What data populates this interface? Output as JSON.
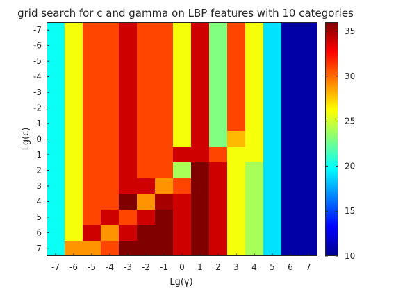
{
  "chart_data": {
    "type": "heatmap",
    "title": "grid search for c and gamma on LBP features with 10 categories",
    "xlabel": "Lg(γ)",
    "ylabel": "Lg(c)",
    "x_ticks": [
      "-7",
      "-6",
      "-5",
      "-4",
      "-3",
      "-2",
      "-1",
      "0",
      "1",
      "2",
      "3",
      "4",
      "5",
      "6",
      "7"
    ],
    "y_ticks": [
      "-7",
      "-6",
      "-5",
      "-4",
      "-3",
      "-2",
      "-1",
      "0",
      "1",
      "2",
      "3",
      "4",
      "5",
      "6",
      "7"
    ],
    "colorbar": {
      "min": 10,
      "max": 36,
      "ticks": [
        "10",
        "15",
        "20",
        "25",
        "30",
        "35"
      ],
      "colormap": "jet"
    },
    "values": [
      [
        20,
        26,
        31,
        31,
        34,
        31,
        31,
        26,
        34,
        23,
        31,
        26,
        19,
        11,
        11
      ],
      [
        20,
        26,
        31,
        31,
        34,
        31,
        31,
        26,
        34,
        23,
        31,
        26,
        19,
        11,
        11
      ],
      [
        20,
        26,
        31,
        31,
        34,
        31,
        31,
        26,
        34,
        23,
        31,
        26,
        19,
        11,
        11
      ],
      [
        20,
        26,
        31,
        31,
        34,
        31,
        31,
        26,
        34,
        23,
        31,
        26,
        19,
        11,
        11
      ],
      [
        20,
        26,
        31,
        31,
        34,
        31,
        31,
        26,
        34,
        23,
        31,
        26,
        19,
        11,
        11
      ],
      [
        20,
        26,
        31,
        31,
        34,
        31,
        31,
        26,
        34,
        23,
        31,
        26,
        19,
        11,
        11
      ],
      [
        20,
        26,
        31,
        31,
        34,
        31,
        31,
        26,
        34,
        23,
        31,
        26,
        19,
        11,
        11
      ],
      [
        20,
        26,
        31,
        31,
        34,
        31,
        31,
        26,
        34,
        23,
        28,
        26,
        19,
        11,
        11
      ],
      [
        20,
        26,
        31,
        31,
        34,
        31,
        31,
        34,
        34,
        31,
        26,
        26,
        19,
        11,
        11
      ],
      [
        20,
        26,
        31,
        31,
        34,
        31,
        31,
        24,
        36,
        34,
        26,
        24,
        19,
        11,
        11
      ],
      [
        20,
        26,
        31,
        31,
        34,
        34,
        29,
        31,
        37,
        34,
        26,
        24,
        19,
        11,
        11
      ],
      [
        20,
        26,
        31,
        31,
        36,
        29,
        35,
        34,
        37,
        34,
        26,
        24,
        19,
        11,
        11
      ],
      [
        20,
        26,
        31,
        34,
        31,
        34,
        37,
        34,
        37,
        34,
        26,
        24,
        19,
        11,
        11
      ],
      [
        20,
        26,
        34,
        29,
        34,
        37,
        37,
        34,
        37,
        34,
        26,
        24,
        19,
        11,
        11
      ],
      [
        20,
        29,
        29,
        31,
        37,
        37,
        37,
        34,
        37,
        34,
        26,
        24,
        19,
        11,
        11
      ]
    ]
  }
}
